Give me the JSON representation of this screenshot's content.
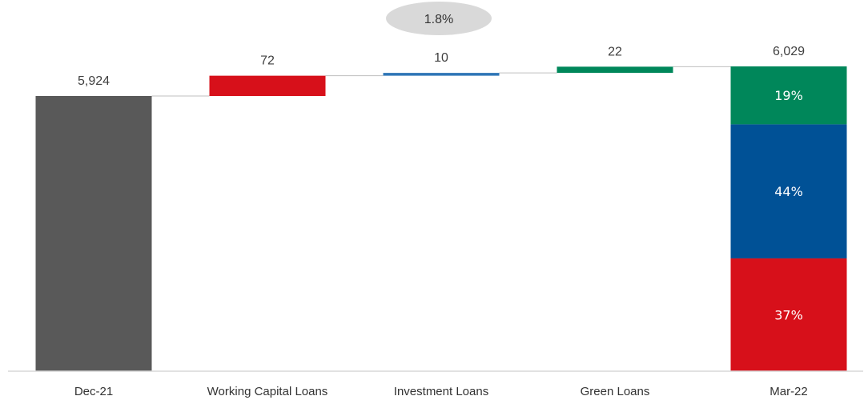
{
  "chart_data": {
    "type": "bar",
    "subtype": "waterfall",
    "categories": [
      "Dec-21",
      "Working Capital Loans",
      "Investment Loans",
      "Green Loans",
      "Mar-22"
    ],
    "bars": [
      {
        "category": "Dec-21",
        "kind": "total",
        "value": 5924,
        "label": "5,924",
        "color": "#595959"
      },
      {
        "category": "Working Capital Loans",
        "kind": "delta",
        "value": 72,
        "label": "72",
        "color": "#d7101a"
      },
      {
        "category": "Investment Loans",
        "kind": "delta",
        "value": 10,
        "label": "10",
        "color": "#2e75b6"
      },
      {
        "category": "Green Loans",
        "kind": "delta",
        "value": 22,
        "label": "22",
        "color": "#00875a"
      },
      {
        "category": "Mar-22",
        "kind": "total",
        "value": 6029,
        "label": "6,029",
        "segments": [
          {
            "share": 37,
            "label": "37%",
            "color": "#d7101a"
          },
          {
            "share": 44,
            "label": "44%",
            "color": "#005196"
          },
          {
            "share": 19,
            "label": "19%",
            "color": "#00875a"
          }
        ]
      }
    ],
    "growth_label": "1.8%",
    "y_axis": {
      "visible": false,
      "broken": true
    },
    "grid": false,
    "legend": "none"
  }
}
